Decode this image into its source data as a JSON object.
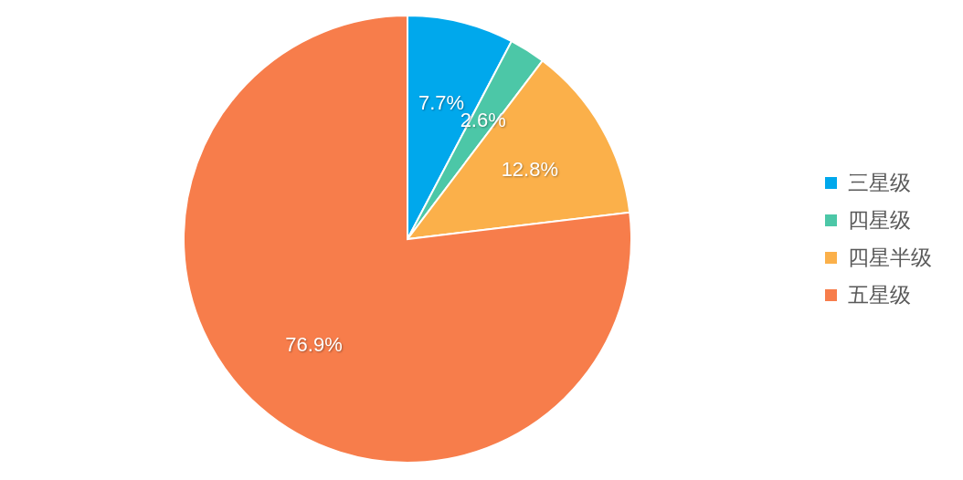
{
  "chart_data": {
    "type": "pie",
    "categories": [
      "三星级",
      "四星级",
      "四星半级",
      "五星级"
    ],
    "values": [
      7.7,
      2.6,
      12.8,
      76.9
    ],
    "value_labels": [
      "7.7%",
      "2.6%",
      "12.8%",
      "76.9%"
    ],
    "colors": [
      "#00a8ec",
      "#4cc7a7",
      "#fbb04a",
      "#f77d4b"
    ],
    "legend": "right"
  }
}
